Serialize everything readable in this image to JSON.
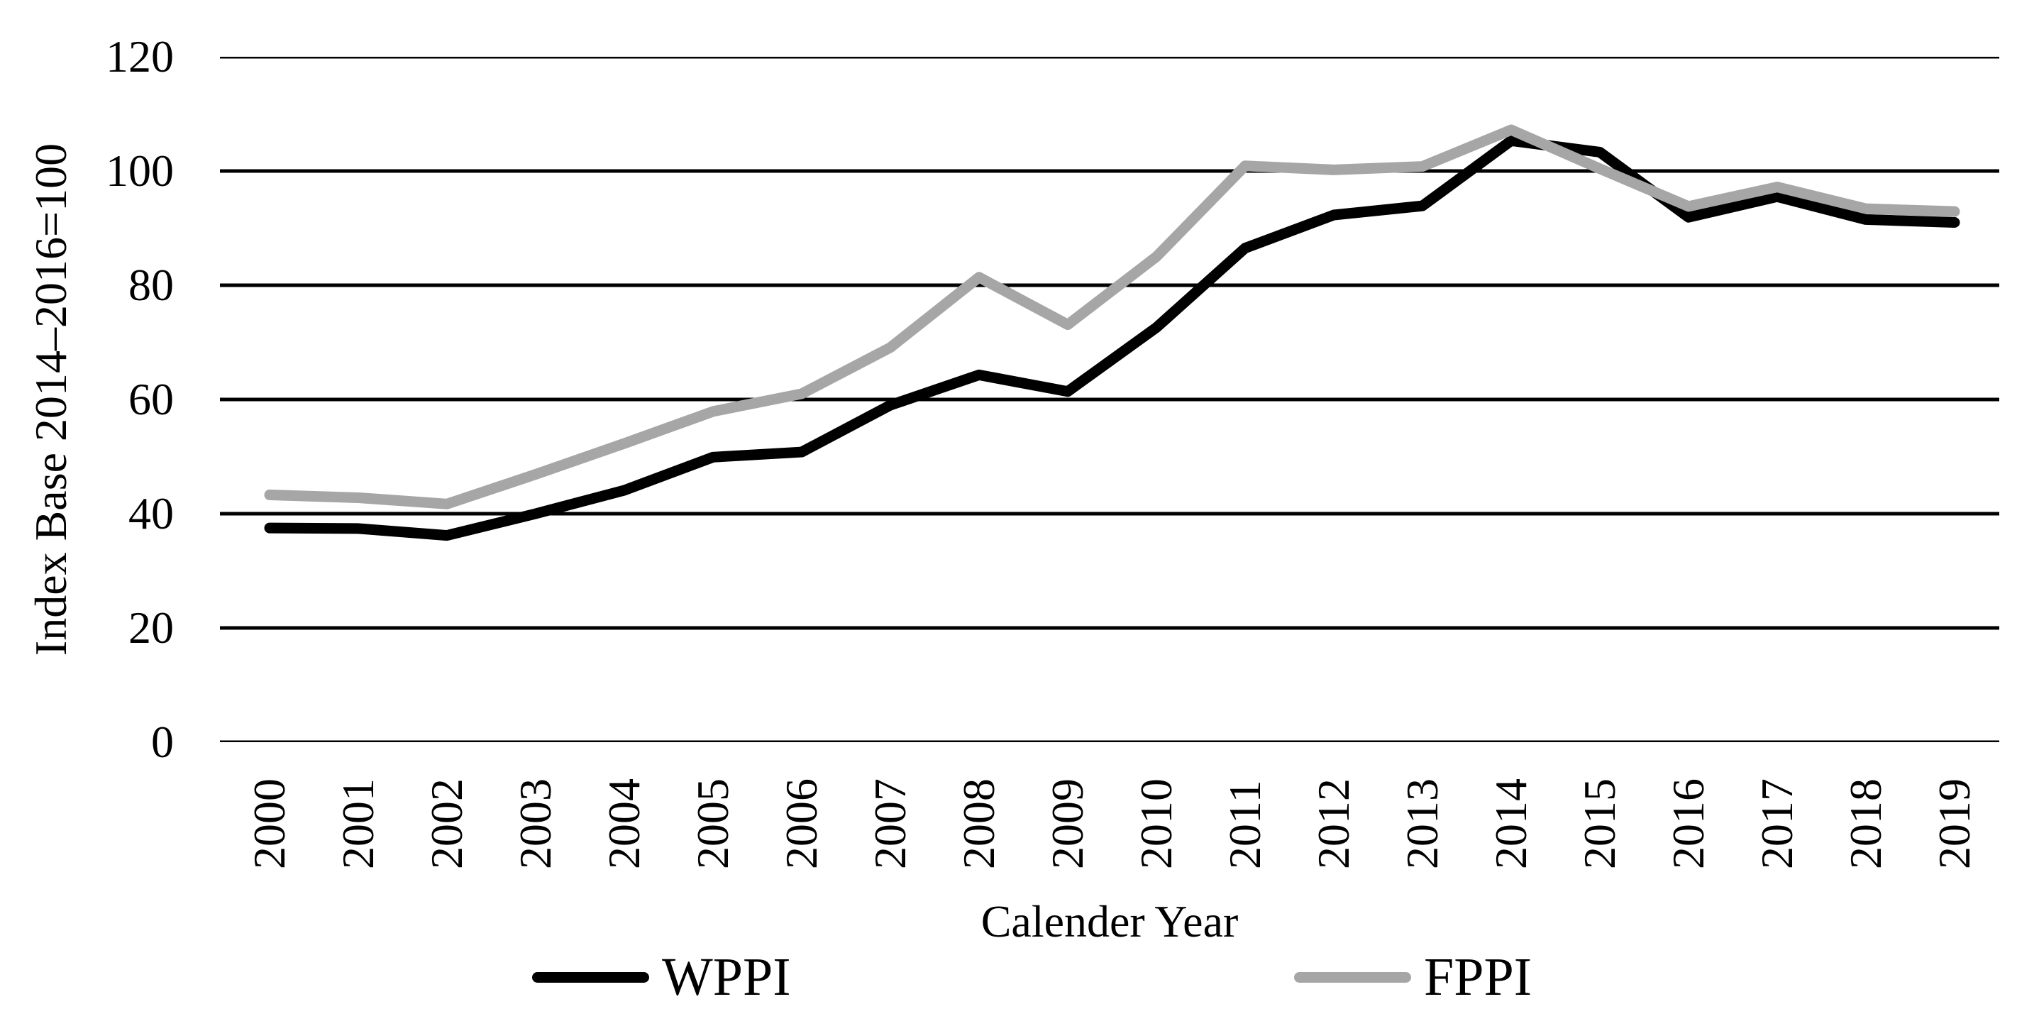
{
  "chart_data": {
    "type": "line",
    "title": "",
    "xlabel": "Calender Year",
    "ylabel": "Index Base 2014–2016=100",
    "categories": [
      "2000",
      "2001",
      "2002",
      "2003",
      "2004",
      "2005",
      "2006",
      "2007",
      "2008",
      "2009",
      "2010",
      "2011",
      "2012",
      "2013",
      "2014",
      "2015",
      "2016",
      "2017",
      "2018",
      "2019"
    ],
    "series": [
      {
        "name": "WPPI",
        "color": "#000000",
        "values": [
          37.5,
          37.4,
          36.2,
          40.0,
          44.1,
          49.9,
          50.8,
          59.0,
          64.3,
          61.4,
          72.6,
          86.5,
          92.3,
          93.9,
          105.3,
          103.3,
          91.9,
          95.5,
          91.5,
          91.0
        ]
      },
      {
        "name": "FPPI",
        "color": "#a6a6a6",
        "values": [
          43.3,
          42.8,
          41.7,
          46.9,
          52.3,
          57.9,
          61.0,
          69.1,
          81.4,
          73.1,
          85.0,
          100.9,
          100.2,
          100.8,
          107.2,
          100.4,
          93.8,
          97.2,
          93.4,
          92.9
        ]
      }
    ],
    "ylim": [
      0,
      120
    ],
    "yticks": [
      0,
      20,
      40,
      60,
      80,
      100,
      120
    ],
    "grid": "horizontal",
    "gridline_color": "#000000",
    "background_color": "#ffffff",
    "legend_position": "bottom"
  }
}
